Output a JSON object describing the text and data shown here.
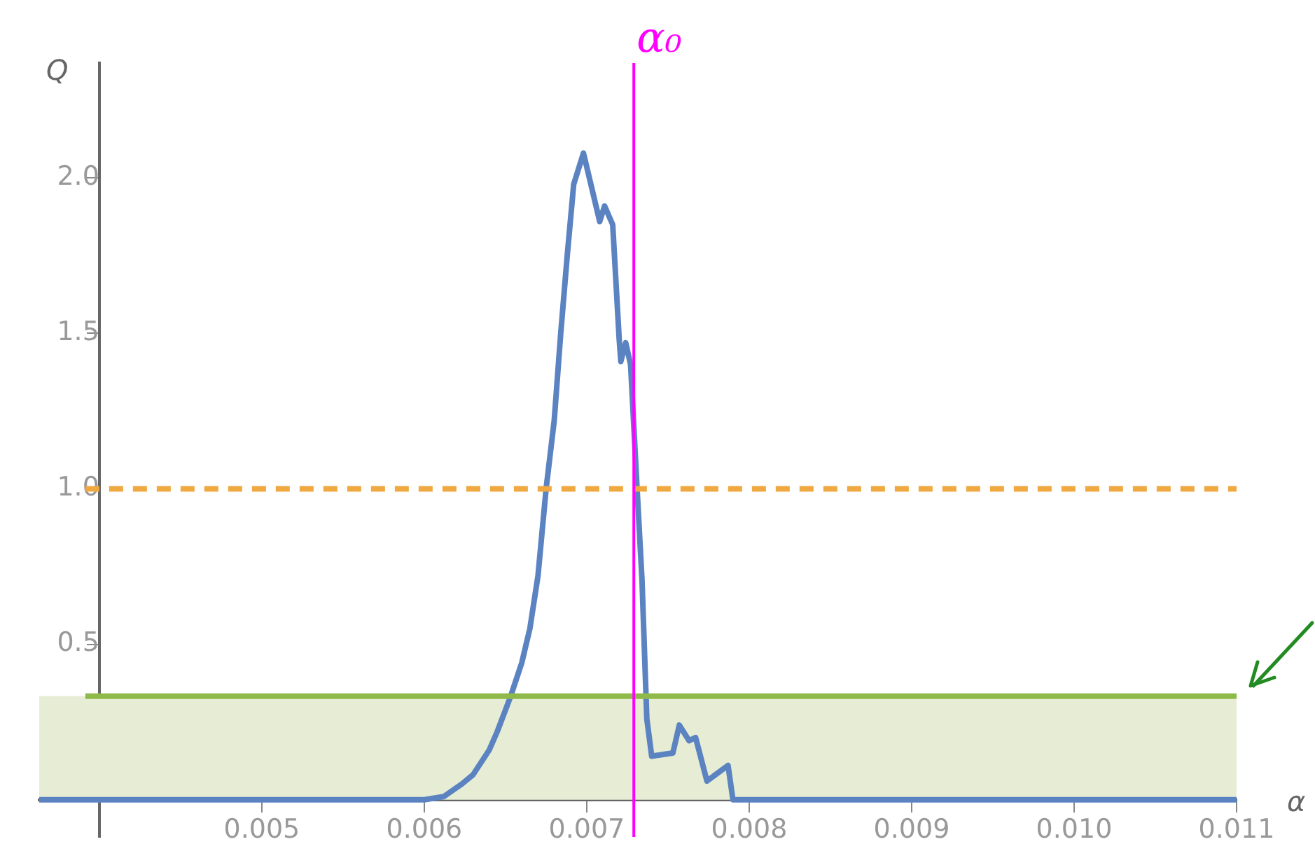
{
  "chart_data": {
    "type": "line",
    "xlabel": "α",
    "ylabel": "Q",
    "color": "#5b83c2",
    "x": [
      0.00363,
      0.0055,
      0.006,
      0.00612,
      0.00623,
      0.0063,
      0.0064,
      0.00645,
      0.00653,
      0.0066,
      0.00665,
      0.0067,
      0.00675,
      0.0068,
      0.00684,
      0.00688,
      0.00692,
      0.00698,
      0.00708,
      0.00711,
      0.00716,
      0.0072,
      0.00721,
      0.00724,
      0.00727,
      0.00731,
      0.00734,
      0.00737,
      0.0074,
      0.00753,
      0.00757,
      0.00763,
      0.00767,
      0.00774,
      0.00787,
      0.0079,
      0.011
    ],
    "values": [
      0,
      0,
      0,
      0.01,
      0.05,
      0.08,
      0.16,
      0.22,
      0.33,
      0.44,
      0.55,
      0.72,
      1.0,
      1.22,
      1.5,
      1.75,
      1.98,
      2.08,
      1.86,
      1.91,
      1.85,
      1.48,
      1.41,
      1.47,
      1.4,
      1.0,
      0.71,
      0.26,
      0.14,
      0.15,
      0.24,
      0.19,
      0.2,
      0.06,
      0.11,
      0,
      0
    ],
    "xlim": [
      0.00363,
      0.011
    ],
    "ylim": [
      -0.12,
      2.37
    ],
    "xticks": [
      0.005,
      0.006,
      0.007,
      0.008,
      0.009,
      {
        "value": 0.01,
        "label": "0.010"
      },
      0.011
    ],
    "yticks": [
      0.5,
      {
        "value": 1,
        "label": "1.0"
      },
      1.5,
      {
        "value": 2,
        "label": "2.0"
      }
    ],
    "grid": false,
    "legend": false,
    "marker": "none",
    "ref_lines": [
      {
        "axis": "y",
        "value": 1,
        "color": "#f0a840",
        "line_style": "dashed"
      },
      {
        "axis": "y",
        "value": 0.333,
        "color": "#8fba4a",
        "line_style": "solid"
      },
      {
        "axis": "x",
        "value": 0.00729,
        "label": "α₀",
        "color": "#ff00ff",
        "line_style": "solid"
      }
    ],
    "bands": [
      {
        "axis": "y",
        "from": 0,
        "to": 0.333,
        "color": "#e6edd4"
      }
    ]
  }
}
